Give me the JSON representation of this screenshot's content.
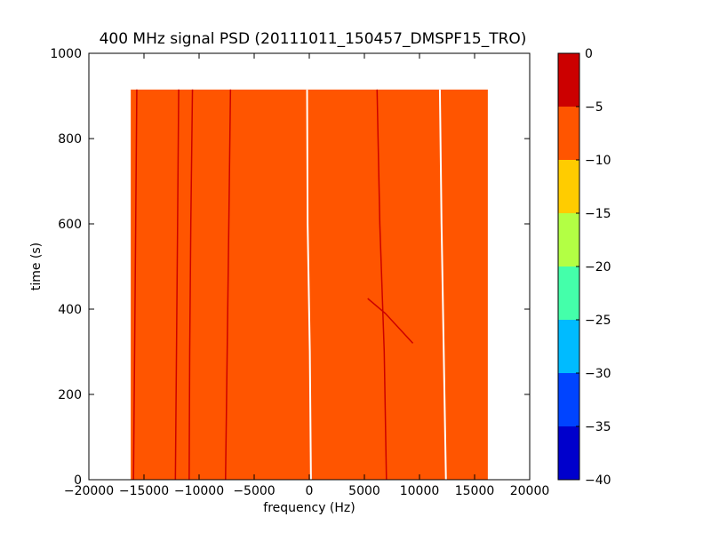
{
  "chart_data": [
    {
      "type": "heatmap",
      "title": "400 MHz signal PSD (20111011_150457_DMSPF15_TRO)",
      "xlabel": "frequency (Hz)",
      "ylabel": "time (s)",
      "xlim": [
        -20000,
        20000
      ],
      "ylim": [
        0,
        1000
      ],
      "x_ticks": [
        -20000,
        -15000,
        -10000,
        -5000,
        0,
        5000,
        10000,
        15000,
        20000
      ],
      "y_ticks": [
        0,
        200,
        400,
        600,
        800,
        1000
      ],
      "data_extent": {
        "x": [
          -16200,
          16200
        ],
        "y": [
          0,
          915
        ]
      },
      "background_level": -7.5,
      "background_color": "#ff5500",
      "traces": [
        {
          "level": -2.5,
          "color": "#cc0000",
          "points": [
            [
              -15950,
              0
            ],
            [
              -15850,
              300
            ],
            [
              -15750,
              600
            ],
            [
              -15650,
              915
            ]
          ]
        },
        {
          "level": -2.5,
          "color": "#cc0000",
          "points": [
            [
              -12150,
              0
            ],
            [
              -12050,
              300
            ],
            [
              -11950,
              600
            ],
            [
              -11850,
              915
            ]
          ]
        },
        {
          "level": -2.5,
          "color": "#cc0000",
          "points": [
            [
              -10900,
              0
            ],
            [
              -10850,
              300
            ],
            [
              -10750,
              600
            ],
            [
              -10600,
              915
            ]
          ]
        },
        {
          "level": -2.5,
          "color": "#cc0000",
          "points": [
            [
              -7600,
              0
            ],
            [
              -7450,
              300
            ],
            [
              -7300,
              600
            ],
            [
              -7150,
              915
            ]
          ]
        },
        {
          "level": -2.5,
          "color": "#cc0000",
          "points": [
            [
              7000,
              0
            ],
            [
              6800,
              300
            ],
            [
              6400,
              600
            ],
            [
              6150,
              915
            ]
          ]
        },
        {
          "level": -2.5,
          "color": "#cc0000",
          "points": [
            [
              5300,
              425
            ],
            [
              6900,
              390
            ],
            [
              9400,
              320
            ]
          ]
        },
        {
          "level": -40,
          "color": "#ffffff",
          "points": [
            [
              150,
              0
            ],
            [
              50,
              300
            ],
            [
              -150,
              600
            ],
            [
              -200,
              915
            ]
          ]
        },
        {
          "level": -40,
          "color": "#ffffff",
          "points": [
            [
              12400,
              0
            ],
            [
              12200,
              300
            ],
            [
              12000,
              600
            ],
            [
              11850,
              915
            ]
          ]
        }
      ],
      "colorbar": {
        "levels": [
          0,
          -5,
          -10,
          -15,
          -20,
          -25,
          -30,
          -35,
          -40
        ],
        "colors": [
          "#cc0000",
          "#ff5500",
          "#ffcc00",
          "#b3ff44",
          "#44ffaa",
          "#00bbff",
          "#0044ff",
          "#0000cc"
        ]
      }
    }
  ]
}
